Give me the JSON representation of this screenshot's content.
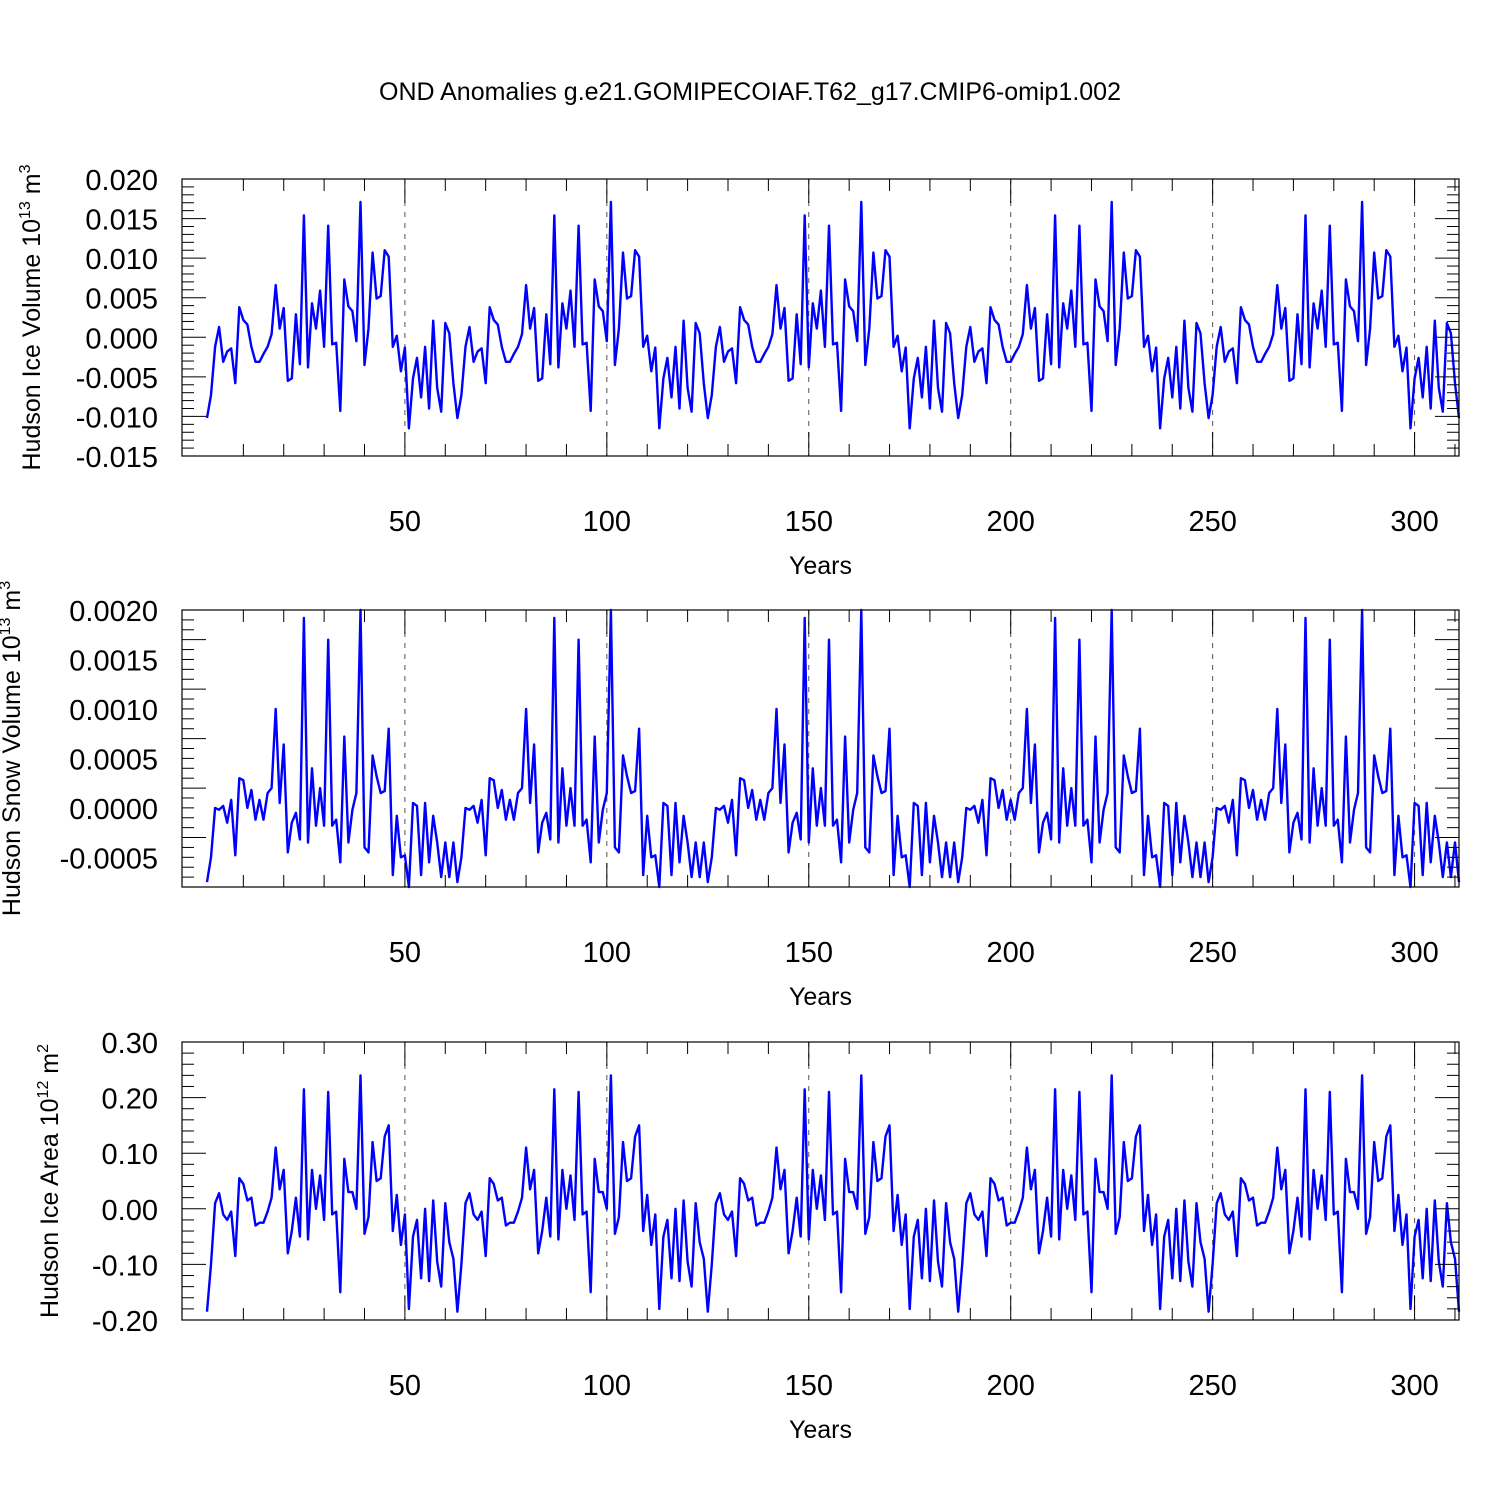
{
  "title": "OND Anomalies g.e21.GOMIPECOIAF.T62_g17.CMIP6-omip1.002",
  "colors": {
    "series": "#0000ff",
    "axis": "#000000",
    "grid": "#555555"
  },
  "chart_data": [
    {
      "type": "line",
      "ylabel": "Hudson Ice Volume",
      "ylabel_unit_base": "10",
      "ylabel_unit_exp": "13",
      "ylabel_unit_suffix": "m",
      "ylabel_unit_suffix_exp": "3",
      "xlabel": "Years",
      "xlim": [
        1,
        311
      ],
      "ylim": [
        -0.015,
        0.02
      ],
      "x_ticks": [
        50,
        100,
        150,
        200,
        250,
        300
      ],
      "x_tick_labels": [
        "50",
        "100",
        "150",
        "200",
        "250",
        "300"
      ],
      "y_ticks": [
        -0.015,
        -0.01,
        -0.005,
        0.0,
        0.005,
        0.01,
        0.015,
        0.02
      ],
      "y_tick_labels": [
        "-0.015",
        "-0.010",
        "-0.005",
        "0.000",
        "0.005",
        "0.010",
        "0.015",
        "0.020"
      ],
      "period": 62,
      "series": [
        {
          "name": "Hudson Ice Volume",
          "color": "#0000ff",
          "values": [
            -0.0102,
            -0.0073,
            -0.0012,
            0.0013,
            -0.0031,
            -0.0018,
            -0.0014,
            -0.0058,
            0.0038,
            0.0022,
            0.0016,
            -0.0012,
            -0.0031,
            -0.0031,
            -0.0021,
            -0.0012,
            0.0004,
            0.0066,
            0.0011,
            0.0037,
            -0.0055,
            -0.0052,
            0.0029,
            -0.0034,
            0.0154,
            -0.0038,
            0.0043,
            0.0011,
            0.0059,
            -0.0012,
            0.0141,
            -0.0009,
            -0.0007,
            -0.0093,
            0.0073,
            0.0039,
            0.0033,
            -0.0005,
            0.0171,
            -0.0035,
            0.0011,
            0.0107,
            0.0049,
            0.0052,
            0.011,
            0.0102,
            -0.0012,
            0.0002,
            -0.0043,
            -0.0013,
            -0.0115,
            -0.0052,
            -0.0026,
            -0.0076,
            -0.0012,
            -0.009,
            0.0021,
            -0.0064,
            -0.0094,
            0.0018,
            0.0005,
            -0.0058
          ]
        }
      ]
    },
    {
      "type": "line",
      "ylabel": "Hudson Snow Volume",
      "ylabel_unit_base": "10",
      "ylabel_unit_exp": "13",
      "ylabel_unit_suffix": "m",
      "ylabel_unit_suffix_exp": "3",
      "xlabel": "Years",
      "xlim": [
        1,
        311
      ],
      "ylim": [
        -0.0008,
        0.002
      ],
      "x_ticks": [
        50,
        100,
        150,
        200,
        250,
        300
      ],
      "x_tick_labels": [
        "50",
        "100",
        "150",
        "200",
        "250",
        "300"
      ],
      "y_ticks": [
        -0.0005,
        0.0,
        0.0005,
        0.001,
        0.0015,
        0.002
      ],
      "y_tick_labels": [
        "-0.0005",
        "0.0000",
        "0.0005",
        "0.0010",
        "0.0015",
        "0.0020"
      ],
      "period": 62,
      "series": [
        {
          "name": "Hudson Snow Volume",
          "color": "#0000ff",
          "values": [
            -0.00075,
            -0.0005,
            0.0,
            -2e-05,
            2e-05,
            -0.00015,
            8e-05,
            -0.00048,
            0.0003,
            0.00028,
            0.0,
            0.00018,
            -0.00012,
            8e-05,
            -0.00012,
            0.00015,
            0.0002,
            0.001,
            5e-05,
            0.00064,
            -0.00045,
            -0.00015,
            -5e-05,
            -0.00032,
            0.00192,
            -0.00035,
            0.0004,
            -0.00018,
            0.0002,
            -0.00018,
            0.0017,
            -0.00018,
            -0.00012,
            -0.00055,
            0.00072,
            -0.00035,
            -2e-05,
            0.00015,
            0.00205,
            -0.0004,
            -0.00045,
            0.00053,
            0.00032,
            0.00015,
            0.00017,
            0.0008,
            -0.00068,
            -8e-05,
            -0.0005,
            -0.00048,
            -0.0008,
            5e-05,
            2e-05,
            -0.00068,
            5e-05,
            -0.00055,
            -8e-05,
            -0.00035,
            -0.0007,
            -0.00035,
            -0.0007,
            -0.00035
          ]
        }
      ]
    },
    {
      "type": "line",
      "ylabel": "Hudson Ice Area",
      "ylabel_unit_base": "10",
      "ylabel_unit_exp": "12",
      "ylabel_unit_suffix": "m",
      "ylabel_unit_suffix_exp": "2",
      "xlabel": "Years",
      "xlim": [
        1,
        311
      ],
      "ylim": [
        -0.2,
        0.3
      ],
      "x_ticks": [
        50,
        100,
        150,
        200,
        250,
        300
      ],
      "x_tick_labels": [
        "50",
        "100",
        "150",
        "200",
        "250",
        "300"
      ],
      "y_ticks": [
        -0.2,
        -0.1,
        0.0,
        0.1,
        0.2,
        0.3
      ],
      "y_tick_labels": [
        "-0.20",
        "-0.10",
        "0.00",
        "0.10",
        "0.20",
        "0.30"
      ],
      "period": 62,
      "series": [
        {
          "name": "Hudson Ice Area",
          "color": "#0000ff",
          "values": [
            -0.185,
            -0.1,
            0.01,
            0.028,
            -0.01,
            -0.02,
            -0.005,
            -0.085,
            0.055,
            0.045,
            0.015,
            0.02,
            -0.03,
            -0.025,
            -0.025,
            -0.005,
            0.02,
            0.11,
            0.035,
            0.07,
            -0.08,
            -0.04,
            0.02,
            -0.05,
            0.215,
            -0.055,
            0.07,
            0.0,
            0.06,
            -0.02,
            0.21,
            -0.01,
            -0.005,
            -0.15,
            0.09,
            0.03,
            0.03,
            0.0,
            0.24,
            -0.045,
            -0.015,
            0.12,
            0.05,
            0.055,
            0.13,
            0.15,
            -0.04,
            0.025,
            -0.065,
            -0.01,
            -0.18,
            -0.05,
            -0.02,
            -0.125,
            0.0,
            -0.13,
            0.015,
            -0.095,
            -0.14,
            0.01,
            -0.06,
            -0.09
          ]
        }
      ]
    }
  ]
}
